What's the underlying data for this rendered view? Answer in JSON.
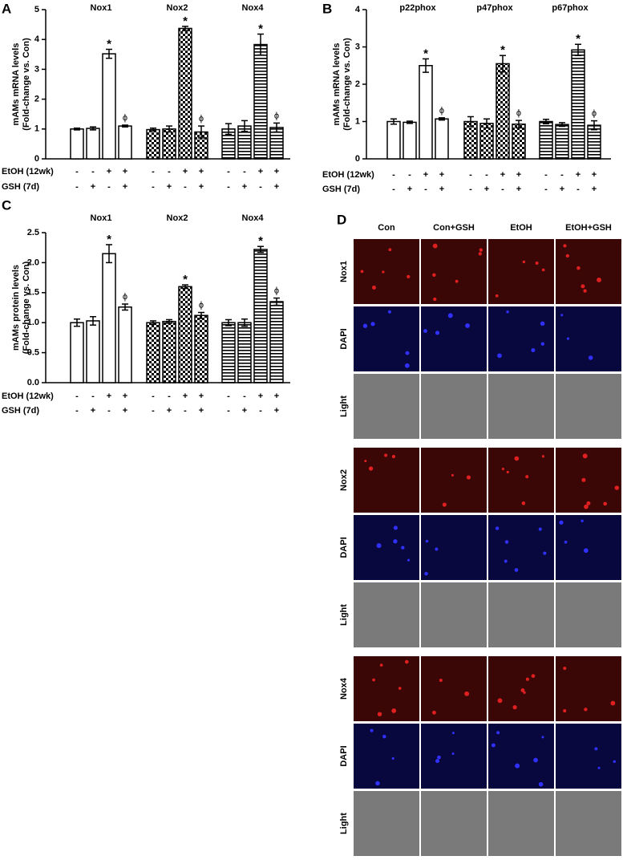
{
  "chart_data": [
    {
      "type": "bar",
      "panel": "A",
      "ylabel": [
        "mAMs mRNA levels",
        "(Fold-change vs. Con)"
      ],
      "ylim": [
        0,
        5
      ],
      "yticks": [
        0,
        1,
        2,
        3,
        4,
        5
      ],
      "groups": [
        {
          "name": "Nox1",
          "pattern": "open",
          "values": [
            1.0,
            1.02,
            3.52,
            1.1
          ],
          "errors": [
            0.03,
            0.05,
            0.15,
            0.03
          ],
          "marks": [
            null,
            null,
            "*",
            "ϕ"
          ]
        },
        {
          "name": "Nox2",
          "pattern": "checker",
          "values": [
            0.98,
            1.0,
            4.37,
            0.9
          ],
          "errors": [
            0.05,
            0.1,
            0.07,
            0.2
          ],
          "marks": [
            null,
            null,
            "*",
            "ϕ"
          ]
        },
        {
          "name": "Nox4",
          "pattern": "hlines",
          "values": [
            1.0,
            1.1,
            3.83,
            1.05
          ],
          "errors": [
            0.18,
            0.18,
            0.35,
            0.15
          ],
          "marks": [
            null,
            null,
            "*",
            "ϕ"
          ]
        }
      ],
      "conditions": [
        {
          "label": "EtOH (12wk)",
          "signs": [
            "-",
            "-",
            "+",
            "+",
            "-",
            "-",
            "+",
            "+",
            "-",
            "-",
            "+",
            "+"
          ]
        },
        {
          "label": "GSH (7d)",
          "signs": [
            "-",
            "+",
            "-",
            "+",
            "-",
            "+",
            "-",
            "+",
            "-",
            "+",
            "-",
            "+"
          ]
        }
      ]
    },
    {
      "type": "bar",
      "panel": "B",
      "ylabel": [
        "mAMs mRNA levels",
        "(Fold-change vs. Con)"
      ],
      "ylim": [
        0,
        4
      ],
      "yticks": [
        0,
        1,
        2,
        3,
        4
      ],
      "groups": [
        {
          "name": "p22phox",
          "pattern": "open",
          "values": [
            1.0,
            0.98,
            2.5,
            1.07
          ],
          "errors": [
            0.07,
            0.03,
            0.18,
            0.03
          ],
          "marks": [
            null,
            null,
            "*",
            "ϕ"
          ]
        },
        {
          "name": "p47phox",
          "pattern": "checker",
          "values": [
            1.0,
            0.95,
            2.55,
            0.93
          ],
          "errors": [
            0.13,
            0.12,
            0.22,
            0.1
          ],
          "marks": [
            null,
            null,
            "*",
            "ϕ"
          ]
        },
        {
          "name": "p67phox",
          "pattern": "hlines",
          "values": [
            1.0,
            0.92,
            2.92,
            0.9
          ],
          "errors": [
            0.06,
            0.05,
            0.15,
            0.12
          ],
          "marks": [
            null,
            null,
            "*",
            "ϕ"
          ]
        }
      ],
      "conditions": [
        {
          "label": "EtOH (12wk)",
          "signs": [
            "-",
            "-",
            "+",
            "+",
            "-",
            "-",
            "+",
            "+",
            "-",
            "-",
            "+",
            "+"
          ]
        },
        {
          "label": "GSH (7d)",
          "signs": [
            "-",
            "+",
            "-",
            "+",
            "-",
            "+",
            "-",
            "+",
            "-",
            "+",
            "-",
            "+"
          ]
        }
      ]
    },
    {
      "type": "bar",
      "panel": "C",
      "ylabel": [
        "mAMs protein levels",
        "(Fold-change vs. Con)"
      ],
      "ylim": [
        0,
        2.5
      ],
      "yticks": [
        {
          "value": 0,
          "label": "0.0"
        },
        {
          "value": 0.5,
          "label": "0.5"
        },
        {
          "value": 1,
          "label": "1.0"
        },
        {
          "value": 1.5,
          "label": "1.5"
        },
        {
          "value": 2,
          "label": "2.0"
        },
        {
          "value": 2.5,
          "label": "2.5"
        }
      ],
      "groups": [
        {
          "name": "Nox1",
          "pattern": "open",
          "values": [
            1.0,
            1.03,
            2.15,
            1.26
          ],
          "errors": [
            0.06,
            0.07,
            0.15,
            0.05
          ],
          "marks": [
            null,
            null,
            "*",
            "ϕ"
          ]
        },
        {
          "name": "Nox2",
          "pattern": "checker",
          "values": [
            1.0,
            1.02,
            1.6,
            1.12
          ],
          "errors": [
            0.03,
            0.03,
            0.03,
            0.05
          ],
          "marks": [
            null,
            null,
            "*",
            "ϕ"
          ]
        },
        {
          "name": "Nox4",
          "pattern": "hlines",
          "values": [
            1.0,
            1.0,
            2.22,
            1.35
          ],
          "errors": [
            0.05,
            0.06,
            0.05,
            0.06
          ],
          "marks": [
            null,
            null,
            "*",
            "ϕ"
          ]
        }
      ],
      "conditions": [
        {
          "label": "EtOH (12wk)",
          "signs": [
            "-",
            "-",
            "+",
            "+",
            "-",
            "-",
            "+",
            "+",
            "-",
            "-",
            "+",
            "+"
          ]
        },
        {
          "label": "GSH (7d)",
          "signs": [
            "-",
            "+",
            "-",
            "+",
            "-",
            "+",
            "-",
            "+",
            "-",
            "+",
            "-",
            "+"
          ]
        }
      ]
    }
  ],
  "panel_d": {
    "panel": "D",
    "columns": [
      "Con",
      "Con+GSH",
      "EtOH",
      "EtOH+GSH"
    ],
    "rows": [
      "Nox1",
      "DAPI",
      "Light",
      "Nox2",
      "DAPI",
      "Light",
      "Nox4",
      "DAPI",
      "Light"
    ]
  }
}
